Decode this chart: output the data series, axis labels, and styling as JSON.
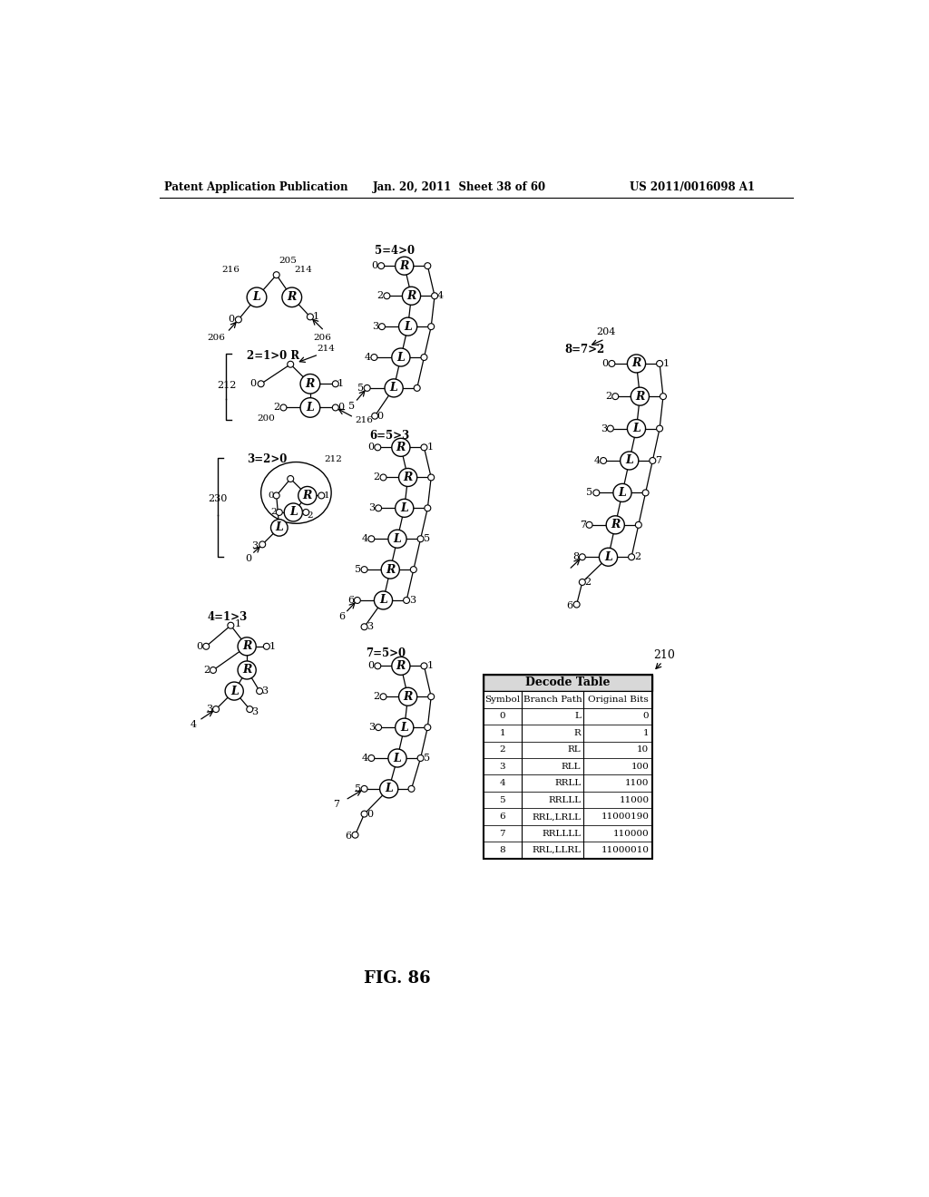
{
  "header_left": "Patent Application Publication",
  "header_mid": "Jan. 20, 2011  Sheet 38 of 60",
  "header_right": "US 2011/0016098 A1",
  "fig_label": "FIG. 86",
  "bg_color": "#ffffff",
  "decode_table_rows": [
    [
      "0",
      "L",
      "0"
    ],
    [
      "1",
      "R",
      "1"
    ],
    [
      "2",
      "RL",
      "10"
    ],
    [
      "3",
      "RLL",
      "100"
    ],
    [
      "4",
      "RRLL",
      "1100"
    ],
    [
      "5",
      "RRLLL",
      "11000"
    ],
    [
      "6",
      "RRL,LRLL",
      "11000190"
    ],
    [
      "7",
      "RRLLLL",
      "110000"
    ],
    [
      "8",
      "RRL,LLRL",
      "11000010"
    ]
  ]
}
